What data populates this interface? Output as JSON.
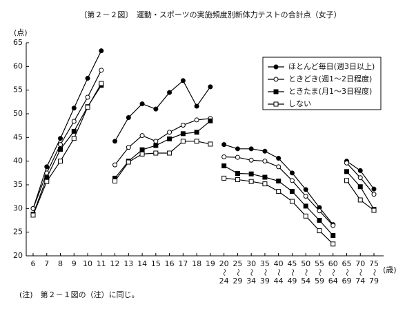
{
  "chart_data": {
    "type": "line",
    "title": "〔第２－２図〕　運動・スポーツの実施頻度別新体力テストの合計点（女子）",
    "y_label": "(点)",
    "x_label": "(歳)",
    "note": "(注)　第２－１図の（注）に同じ。",
    "range_mark": "〜",
    "categories": [
      [
        "6",
        "7",
        "8",
        "9",
        "10",
        "11"
      ],
      [
        "12",
        "13",
        "14",
        "15",
        "16",
        "17",
        "18",
        "19"
      ],
      [
        [
          "20",
          "24"
        ],
        [
          "25",
          "29"
        ],
        [
          "30",
          "34"
        ],
        [
          "35",
          "39"
        ],
        [
          "40",
          "44"
        ],
        [
          "45",
          "49"
        ],
        [
          "50",
          "54"
        ],
        [
          "55",
          "59"
        ],
        [
          "60",
          "64"
        ]
      ],
      [
        [
          "65",
          "69"
        ],
        [
          "70",
          "74"
        ],
        [
          "75",
          "79"
        ]
      ]
    ],
    "ylim": [
      20,
      65
    ],
    "yticks": [
      20,
      25,
      30,
      35,
      40,
      45,
      50,
      55,
      60,
      65
    ],
    "grid": false,
    "legend": "upper right",
    "series": [
      {
        "name": "ほとんど毎日(週3日以上)",
        "color": "#000000",
        "marker": "circle",
        "filled": true,
        "values": [
          [
            30,
            38.8,
            44.8,
            51.2,
            57.5,
            63.3
          ],
          [
            44.2,
            49.2,
            52.1,
            51.0,
            54.5,
            57.0,
            51.6,
            55.7
          ],
          [
            43.5,
            42.6,
            42.6,
            42.1,
            40.6,
            37.5,
            34.0,
            30.2,
            26.6
          ],
          [
            40.0,
            38.0,
            34.1
          ]
        ]
      },
      {
        "name": "ときどき(週1～2日程度)",
        "color": "#000000",
        "marker": "circle",
        "filled": false,
        "values": [
          [
            30,
            37.5,
            43.5,
            48.4,
            53.5,
            59.2
          ],
          [
            39.2,
            42.9,
            45.4,
            44.2,
            46.1,
            47.6,
            48.7,
            49.0
          ],
          [
            40.9,
            40.8,
            40.2,
            40.0,
            38.8,
            35.9,
            32.6,
            29.5,
            26.4
          ],
          [
            39.6,
            36.5,
            33.0
          ]
        ]
      },
      {
        "name": "ときたま(月1～3日程度)",
        "color": "#000000",
        "marker": "square",
        "filled": true,
        "values": [
          [
            28.8,
            36.5,
            42.5,
            46.3,
            51.5,
            56.0
          ],
          [
            36.4,
            40.0,
            42.4,
            43.3,
            44.7,
            45.8,
            46.1,
            48.5
          ],
          [
            39.0,
            37.4,
            37.3,
            36.6,
            35.8,
            33.6,
            30.5,
            27.5,
            24.3
          ],
          [
            37.8,
            34.6,
            29.8
          ]
        ]
      },
      {
        "name": "しない",
        "color": "#000000",
        "marker": "square",
        "filled": false,
        "values": [
          [
            28.6,
            35.7,
            40.0,
            44.8,
            51.4,
            56.4
          ],
          [
            35.8,
            39.8,
            41.5,
            41.7,
            41.7,
            44.2,
            44.2,
            43.6
          ],
          [
            36.4,
            36.1,
            35.7,
            35.2,
            33.6,
            31.5,
            28.4,
            25.3,
            22.5
          ],
          [
            35.9,
            31.8,
            29.6
          ]
        ]
      }
    ]
  }
}
